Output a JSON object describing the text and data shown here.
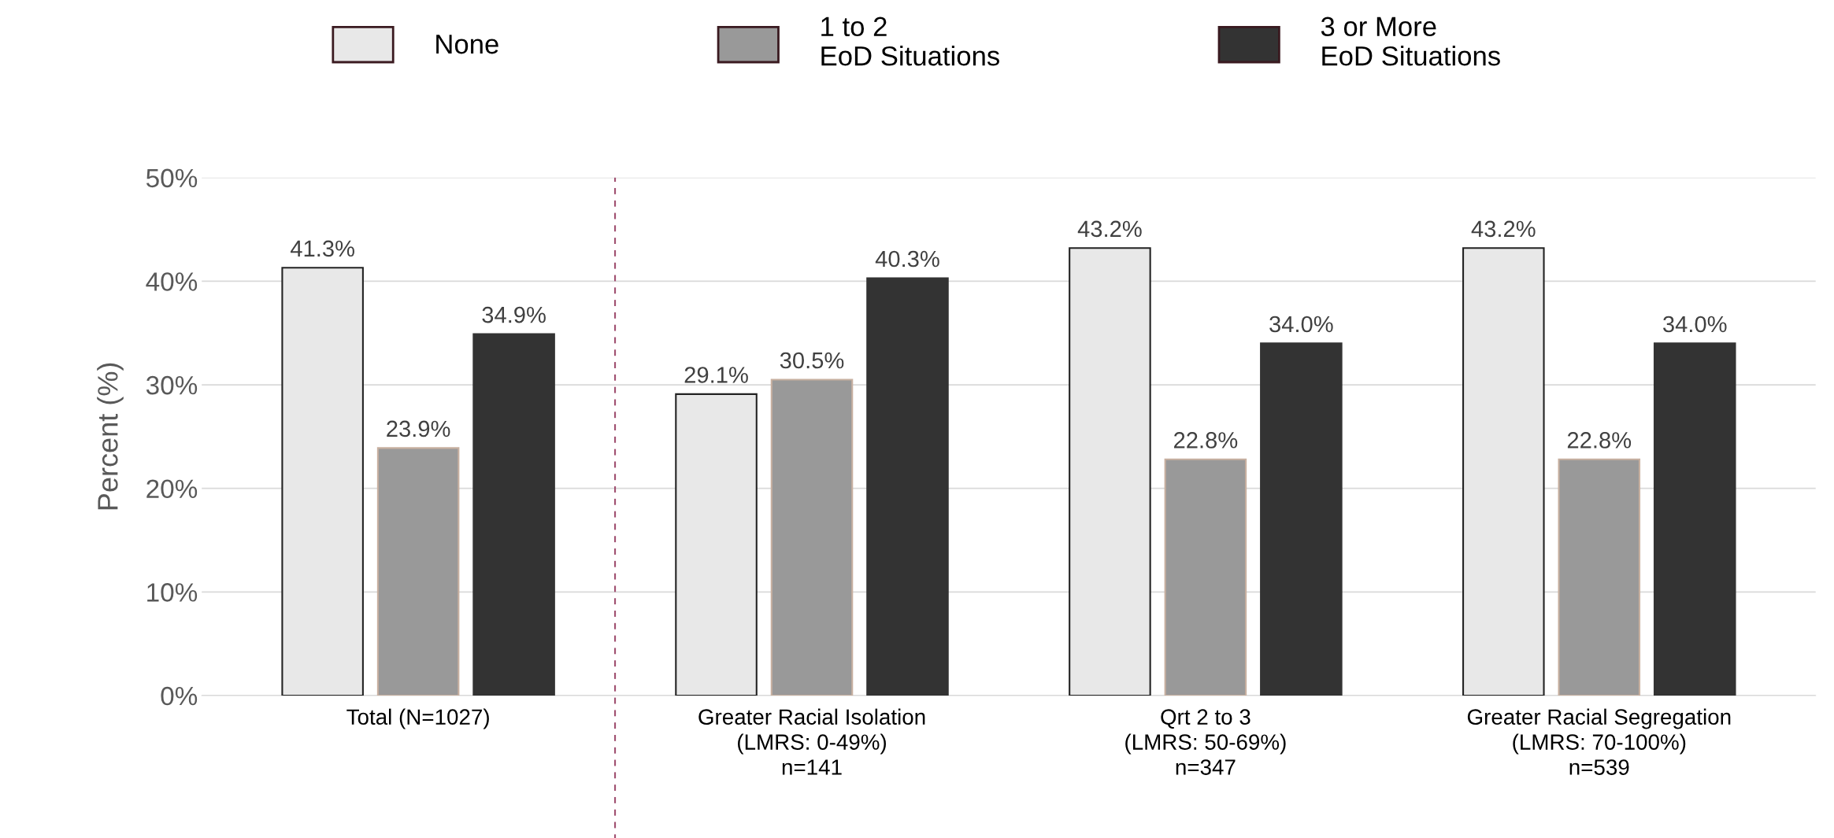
{
  "chart_data": {
    "type": "bar",
    "categories": [
      "Total (N=1027)",
      "Greater Racial Isolation\n(LMRS: 0-49%)\nn=141",
      "Qrt 2 to 3\n(LMRS: 50-69%)\nn=347",
      "Greater Racial Segregation\n(LMRS: 70-100%)\nn=539"
    ],
    "series": [
      {
        "name": "None",
        "color": "#e8e8e8",
        "values": [
          41.3,
          29.1,
          43.2,
          43.2
        ],
        "value_labels": [
          "41.3%",
          "29.1%",
          "43.2%",
          "43.2%"
        ]
      },
      {
        "name": "1 to 2\nEoD Situations",
        "color": "#999999",
        "values": [
          23.9,
          30.5,
          22.8,
          22.8
        ],
        "value_labels": [
          "23.9%",
          "30.5%",
          "22.8%",
          "22.8%"
        ]
      },
      {
        "name": "3 or More\nEoD Situations",
        "color": "#333333",
        "values": [
          34.9,
          40.3,
          34.0,
          34.0
        ],
        "value_labels": [
          "34.9%",
          "40.3%",
          "34.0%",
          "34.0%"
        ]
      }
    ],
    "ylabel": "Percent (%)",
    "ylim": [
      0,
      50
    ],
    "yticks": [
      {
        "value": 0,
        "label": "0%"
      },
      {
        "value": 10,
        "label": "10%"
      },
      {
        "value": 20,
        "label": "20%"
      },
      {
        "value": 30,
        "label": "30%"
      },
      {
        "value": 40,
        "label": "40%"
      },
      {
        "value": 50,
        "label": "50%"
      }
    ],
    "grid": "y",
    "legend": "top"
  }
}
